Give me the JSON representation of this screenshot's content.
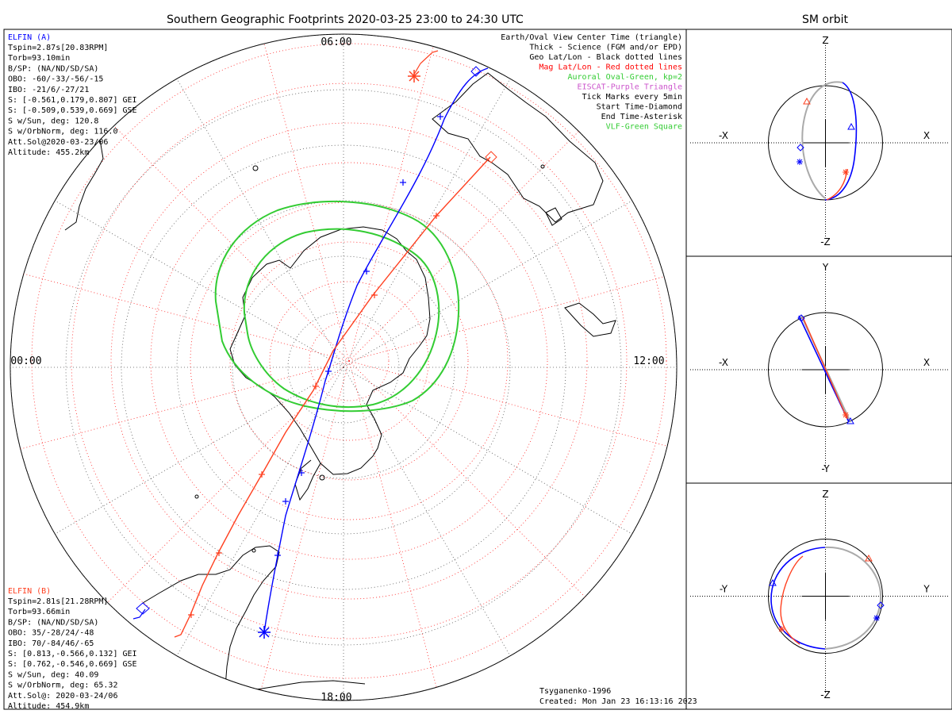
{
  "title": "Southern Geographic Footprints 2020-03-25 23:00 to 24:30 UTC",
  "sm_title": "SM orbit",
  "colors": {
    "elfin_a": "#0000ff",
    "elfin_b": "#ff4020",
    "aurora": "#33cc33",
    "eiscat": "#cc55cc",
    "grid_geo": "#555555",
    "grid_mag": "#ff2020",
    "coast": "#000000",
    "orbit_gray": "#aaaaaa"
  },
  "elfin_a": {
    "name": "ELFIN (A)",
    "lines": [
      "Tspin=2.87s[20.83RPM]",
      "Torb=93.10min",
      "B/SP: (NA/ND/SD/SA)",
      "OBO: -60/-33/-56/-15",
      "IBO: -21/6/-27/21",
      "S: [-0.561,0.179,0.807] GEI",
      "S: [-0.509,0.539,0.669] GSE",
      "S w/Sun, deg: 120.8",
      "S w/OrbNorm, deg: 116.0",
      "Att.Sol@2020-03-23/06",
      "Altitude: 455.2km"
    ]
  },
  "elfin_b": {
    "name": "ELFIN (B)",
    "lines": [
      "Tspin=2.81s[21.28RPM]",
      "Torb=93.66min",
      "B/SP: (NA/ND/SD/SA)",
      "OBO: 35/-28/24/-48",
      "IBO: 70/-84/46/-65",
      "S: [0.813,-0.566,0.132] GEI",
      "S: [0.762,-0.546,0.669] GSE",
      "S w/Sun, deg: 40.09",
      "S w/OrbNorm, deg: 65.32",
      "Att.Sol@: 2020-03-24/06",
      "Altitude: 454.9km"
    ]
  },
  "legend": [
    {
      "text": "Earth/Oval View Center Time (triangle)",
      "color": "#000000"
    },
    {
      "text": "Thick - Science (FGM and/or EPD)",
      "color": "#000000"
    },
    {
      "text": "Geo Lat/Lon - Black dotted lines",
      "color": "#000000"
    },
    {
      "text": "Mag Lat/Lon - Red dotted lines",
      "color": "#ff0000"
    },
    {
      "text": "Auroral Oval-Green, kp=2",
      "color": "#33cc33"
    },
    {
      "text": "EISCAT-Purple Triangle",
      "color": "#cc55cc"
    },
    {
      "text": "Tick Marks every 5min",
      "color": "#000000"
    },
    {
      "text": "Start Time-Diamond",
      "color": "#000000"
    },
    {
      "text": "End Time-Asterisk",
      "color": "#000000"
    },
    {
      "text": "VLF-Green Square",
      "color": "#33cc33"
    }
  ],
  "mlt_labels": {
    "top": "06:00",
    "left": "00:00",
    "right": "12:00",
    "bottom": "18:00"
  },
  "credit": {
    "author": "Tsyganenko-1996",
    "created": "Created: Mon Jan 23 16:13:16 2023"
  },
  "panels": [
    {
      "h_left": "-X",
      "h_right": "X",
      "v_top": "Z",
      "v_bottom": "-Z"
    },
    {
      "h_left": "-X",
      "h_right": "X",
      "v_top": "Y",
      "v_bottom": "-Y"
    },
    {
      "h_left": "-Y",
      "h_right": "Y",
      "v_top": "Z",
      "v_bottom": "-Z"
    }
  ],
  "chart_data": [
    {
      "type": "line",
      "title": "Southern Geographic Footprints 2020-03-25 23:00 to 24:30 UTC",
      "projection": "south polar",
      "mlt_labels": [
        "00:00",
        "06:00",
        "12:00",
        "18:00"
      ],
      "series": [
        {
          "name": "ELFIN (A)",
          "color": "#0000ff"
        },
        {
          "name": "ELFIN (B)",
          "color": "#ff4020"
        }
      ]
    },
    {
      "type": "line",
      "title": "SM orbit",
      "panels": [
        "X-Z",
        "X-Y",
        "Y-Z"
      ],
      "series": [
        {
          "name": "ELFIN (A)",
          "color": "#0000ff"
        },
        {
          "name": "ELFIN (B)",
          "color": "#ff4020"
        }
      ]
    }
  ]
}
